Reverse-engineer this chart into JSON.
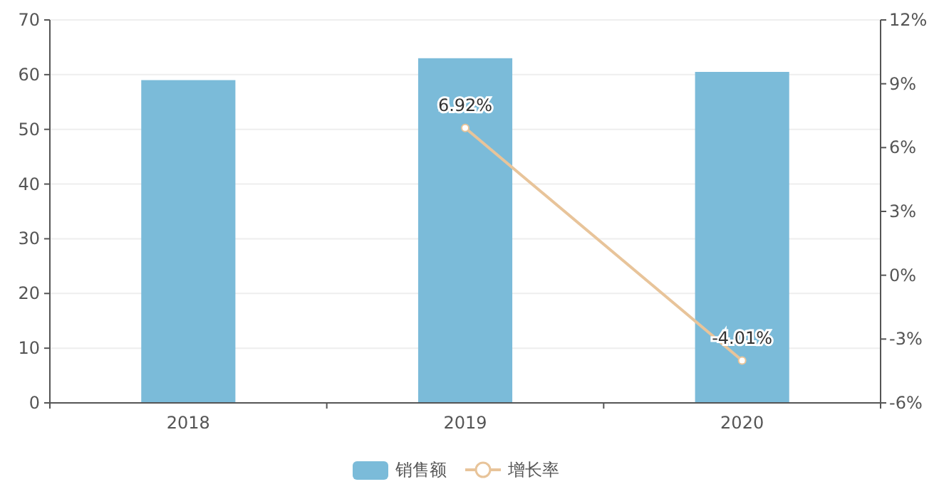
{
  "chart_data": {
    "type": "bar",
    "categories": [
      "2018",
      "2019",
      "2020"
    ],
    "series": [
      {
        "name": "销售额",
        "color": "#7bbbd9",
        "values": [
          59,
          63,
          60.5
        ]
      },
      {
        "name": "增长率",
        "type": "line",
        "axis": "y2",
        "color": "#e8c49a",
        "marker": "circle",
        "values": [
          null,
          6.92,
          -4.01
        ],
        "value_labels": [
          null,
          "6.92%",
          "-4.01%"
        ]
      }
    ],
    "ylim": [
      0,
      70
    ],
    "yticks": [
      0,
      10,
      20,
      30,
      40,
      50,
      60,
      70
    ],
    "y2lim": [
      -6,
      12
    ],
    "y2ticks": [
      {
        "value": -6,
        "label": "-6%"
      },
      {
        "value": -3,
        "label": "-3%"
      },
      {
        "value": 0,
        "label": "0%"
      },
      {
        "value": 3,
        "label": "3%"
      },
      {
        "value": 6,
        "label": "6%"
      },
      {
        "value": 9,
        "label": "9%"
      },
      {
        "value": 12,
        "label": "12%"
      }
    ],
    "grid": "y",
    "legend": "bottom"
  }
}
